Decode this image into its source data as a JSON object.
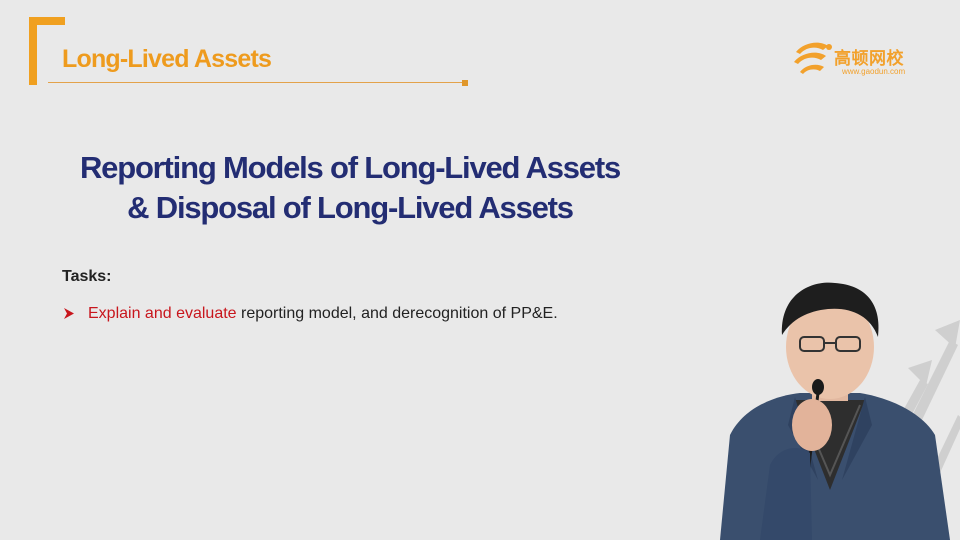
{
  "header": {
    "title": "Long-Lived Assets"
  },
  "logo": {
    "name_cn": "高顿网校",
    "url": "www.gaodun.com"
  },
  "slide": {
    "title_line1": "Reporting Models of Long-Lived Assets",
    "title_line2": "& Disposal of Long-Lived Assets",
    "tasks_label": "Tasks:",
    "task_highlight": "Explain and evaluate",
    "task_rest": " reporting model, and derecognition of PP&E."
  },
  "colors": {
    "accent_orange": "#f0a020",
    "title_navy": "#232d73",
    "highlight_red": "#c8161d",
    "background": "#e9e9e9"
  },
  "icons": {
    "logo": "gaodun-logo-icon",
    "bullet": "arrow-bullet-icon",
    "decoration": "gray-arrows-decoration"
  }
}
